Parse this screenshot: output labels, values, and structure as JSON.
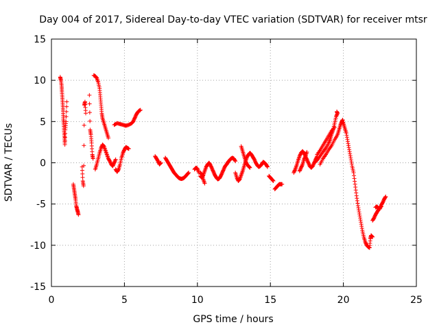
{
  "chart_data": {
    "type": "scatter",
    "title": "Day 004 of 2017, Sidereal Day-to-day VTEC variation (SDTVAR) for receiver mtsr",
    "xlabel": "GPS time / hours",
    "ylabel": "SDTVAR / TECUs",
    "xlim": [
      0,
      25
    ],
    "ylim": [
      -15,
      15
    ],
    "x_ticks": [
      0,
      5,
      10,
      15,
      20,
      25
    ],
    "y_ticks": [
      -15,
      -10,
      -5,
      0,
      5,
      10,
      15
    ],
    "x_tick_labels": [
      "0",
      "5",
      "10",
      "15",
      "20",
      "25"
    ],
    "y_tick_labels": [
      "-15",
      "-10",
      "-5",
      "0",
      "5",
      "10",
      "15"
    ],
    "grid": true,
    "marker": "+",
    "point_color": "#ff0000",
    "series": [
      {
        "name": "SDTVAR",
        "segments": [
          [
            [
              0.6,
              10.4
            ],
            [
              0.65,
              10.0
            ],
            [
              0.7,
              9.3
            ],
            [
              0.72,
              8.6
            ],
            [
              0.75,
              7.8
            ],
            [
              0.78,
              7.0
            ],
            [
              0.8,
              6.2
            ],
            [
              0.82,
              5.3
            ],
            [
              0.85,
              4.6
            ],
            [
              0.87,
              3.8
            ],
            [
              0.9,
              3.0
            ],
            [
              0.92,
              2.2
            ],
            [
              0.95,
              4.0
            ],
            [
              1.0,
              5.0
            ],
            [
              1.05,
              7.4
            ]
          ],
          [
            [
              1.5,
              -2.6
            ],
            [
              1.55,
              -3.2
            ],
            [
              1.6,
              -3.8
            ],
            [
              1.65,
              -4.4
            ],
            [
              1.7,
              -5.2
            ],
            [
              1.75,
              -5.6
            ],
            [
              1.8,
              -5.9
            ],
            [
              1.85,
              -6.3
            ]
          ],
          [
            [
              2.1,
              -0.5
            ],
            [
              2.15,
              -2.2
            ],
            [
              2.2,
              -2.8
            ],
            [
              2.25,
              7.0
            ],
            [
              2.3,
              7.4
            ],
            [
              2.35,
              6.0
            ]
          ],
          [
            [
              2.6,
              8.2
            ],
            [
              2.65,
              4.0
            ],
            [
              2.7,
              3.4
            ],
            [
              2.75,
              2.4
            ],
            [
              2.8,
              1.0
            ],
            [
              2.85,
              0.5
            ]
          ],
          [
            [
              2.9,
              10.6
            ],
            [
              3.0,
              10.5
            ],
            [
              3.1,
              10.3
            ],
            [
              3.2,
              9.8
            ],
            [
              3.3,
              9.0
            ],
            [
              3.35,
              8.0
            ],
            [
              3.4,
              7.0
            ],
            [
              3.45,
              6.0
            ],
            [
              3.5,
              5.4
            ],
            [
              3.6,
              4.8
            ],
            [
              3.7,
              4.2
            ],
            [
              3.8,
              3.6
            ],
            [
              3.9,
              3.0
            ]
          ],
          [
            [
              3.0,
              -0.8
            ],
            [
              3.1,
              -0.2
            ],
            [
              3.2,
              0.5
            ],
            [
              3.3,
              1.2
            ],
            [
              3.4,
              1.8
            ],
            [
              3.5,
              2.2
            ],
            [
              3.6,
              2.0
            ],
            [
              3.7,
              1.5
            ],
            [
              3.8,
              1.0
            ],
            [
              3.9,
              0.5
            ],
            [
              4.0,
              0.2
            ],
            [
              4.1,
              -0.2
            ],
            [
              4.2,
              -0.4
            ],
            [
              4.3,
              0.0
            ],
            [
              4.4,
              0.4
            ]
          ],
          [
            [
              4.4,
              -0.8
            ],
            [
              4.5,
              -1.1
            ],
            [
              4.6,
              -0.8
            ],
            [
              4.7,
              -0.2
            ],
            [
              4.8,
              0.6
            ],
            [
              4.9,
              1.2
            ],
            [
              5.0,
              1.6
            ],
            [
              5.1,
              1.9
            ],
            [
              5.2,
              1.8
            ],
            [
              5.3,
              1.7
            ]
          ],
          [
            [
              4.3,
              4.6
            ],
            [
              4.5,
              4.8
            ],
            [
              4.7,
              4.7
            ],
            [
              4.9,
              4.6
            ],
            [
              5.1,
              4.5
            ],
            [
              5.3,
              4.6
            ],
            [
              5.5,
              4.8
            ],
            [
              5.6,
              5.0
            ],
            [
              5.7,
              5.4
            ],
            [
              5.8,
              5.8
            ],
            [
              5.9,
              6.1
            ],
            [
              6.0,
              6.3
            ],
            [
              6.1,
              6.4
            ]
          ],
          [
            [
              7.1,
              0.8
            ],
            [
              7.2,
              0.5
            ],
            [
              7.3,
              0.2
            ],
            [
              7.4,
              -0.2
            ],
            [
              7.5,
              0.0
            ]
          ],
          [
            [
              7.8,
              0.6
            ],
            [
              7.9,
              0.3
            ],
            [
              8.0,
              0.0
            ],
            [
              8.1,
              -0.3
            ],
            [
              8.2,
              -0.6
            ],
            [
              8.3,
              -0.9
            ],
            [
              8.4,
              -1.2
            ],
            [
              8.5,
              -1.4
            ],
            [
              8.6,
              -1.6
            ],
            [
              8.7,
              -1.8
            ],
            [
              8.8,
              -1.9
            ],
            [
              8.9,
              -1.95
            ],
            [
              9.0,
              -1.9
            ],
            [
              9.1,
              -1.8
            ],
            [
              9.2,
              -1.6
            ],
            [
              9.3,
              -1.4
            ],
            [
              9.4,
              -1.2
            ]
          ],
          [
            [
              9.8,
              -0.8
            ],
            [
              9.9,
              -0.6
            ],
            [
              10.0,
              -0.7
            ],
            [
              10.1,
              -1.2
            ]
          ],
          [
            [
              10.2,
              -1.6
            ],
            [
              10.3,
              -1.8
            ],
            [
              10.4,
              -1.5
            ],
            [
              10.5,
              -1.0
            ],
            [
              10.6,
              -0.5
            ],
            [
              10.7,
              -0.2
            ],
            [
              10.8,
              0.0
            ],
            [
              10.9,
              -0.3
            ],
            [
              11.0,
              -0.7
            ],
            [
              11.1,
              -1.1
            ],
            [
              11.2,
              -1.5
            ],
            [
              11.3,
              -1.8
            ],
            [
              11.4,
              -2.0
            ],
            [
              11.5,
              -1.9
            ],
            [
              11.6,
              -1.6
            ],
            [
              11.7,
              -1.2
            ],
            [
              11.8,
              -0.8
            ],
            [
              11.9,
              -0.4
            ],
            [
              12.0,
              -0.2
            ],
            [
              12.1,
              0.1
            ],
            [
              12.2,
              0.3
            ],
            [
              12.3,
              0.5
            ],
            [
              12.4,
              0.6
            ],
            [
              12.5,
              0.5
            ],
            [
              12.6,
              0.2
            ]
          ],
          [
            [
              10.2,
              -1.2
            ],
            [
              10.3,
              -1.4
            ],
            [
              10.4,
              -2.0
            ],
            [
              10.5,
              -2.5
            ]
          ],
          [
            [
              12.6,
              -1.2
            ],
            [
              12.7,
              -1.8
            ],
            [
              12.8,
              -2.2
            ],
            [
              12.9,
              -2.0
            ],
            [
              13.0,
              -1.5
            ],
            [
              13.1,
              -1.0
            ],
            [
              13.2,
              -0.4
            ],
            [
              13.3,
              0.2
            ],
            [
              13.4,
              0.7
            ],
            [
              13.5,
              1.0
            ],
            [
              13.6,
              1.2
            ],
            [
              13.7,
              1.0
            ],
            [
              13.8,
              0.7
            ],
            [
              13.9,
              0.4
            ],
            [
              14.0,
              0.0
            ],
            [
              14.1,
              -0.3
            ],
            [
              14.2,
              -0.5
            ],
            [
              14.3,
              -0.4
            ],
            [
              14.4,
              -0.2
            ],
            [
              14.5,
              0.1
            ],
            [
              14.6,
              0.0
            ],
            [
              14.7,
              -0.2
            ],
            [
              14.8,
              -0.5
            ]
          ],
          [
            [
              13.0,
              2.0
            ],
            [
              13.1,
              1.4
            ],
            [
              13.2,
              0.8
            ],
            [
              13.3,
              0.2
            ],
            [
              13.4,
              -0.2
            ],
            [
              13.5,
              -0.4
            ],
            [
              13.6,
              -0.6
            ]
          ],
          [
            [
              14.9,
              -1.6
            ],
            [
              15.0,
              -1.8
            ],
            [
              15.1,
              -2.0
            ],
            [
              15.2,
              -2.2
            ]
          ],
          [
            [
              15.3,
              -3.2
            ],
            [
              15.4,
              -3.0
            ],
            [
              15.5,
              -2.8
            ],
            [
              15.6,
              -2.6
            ],
            [
              15.7,
              -2.6
            ],
            [
              15.8,
              -2.6
            ]
          ],
          [
            [
              16.6,
              -1.2
            ],
            [
              16.7,
              -0.8
            ],
            [
              16.8,
              -0.3
            ],
            [
              16.9,
              0.3
            ],
            [
              17.0,
              0.8
            ],
            [
              17.1,
              1.2
            ],
            [
              17.2,
              1.4
            ],
            [
              17.3,
              1.2
            ],
            [
              17.4,
              0.8
            ],
            [
              17.5,
              0.4
            ],
            [
              17.6,
              0.0
            ],
            [
              17.7,
              -0.4
            ],
            [
              17.8,
              -0.6
            ],
            [
              17.9,
              -0.4
            ],
            [
              18.0,
              0.0
            ],
            [
              18.1,
              0.4
            ],
            [
              18.2,
              0.8
            ]
          ],
          [
            [
              17.0,
              -1.0
            ],
            [
              17.1,
              -0.6
            ],
            [
              17.2,
              -0.2
            ],
            [
              17.3,
              0.4
            ],
            [
              17.4,
              0.8
            ],
            [
              17.5,
              1.3
            ]
          ],
          [
            [
              18.0,
              0.0
            ],
            [
              18.2,
              0.3
            ],
            [
              18.4,
              0.8
            ],
            [
              18.6,
              1.3
            ],
            [
              18.8,
              1.8
            ],
            [
              19.0,
              2.4
            ],
            [
              19.1,
              2.9
            ],
            [
              19.2,
              3.5
            ],
            [
              19.3,
              4.0
            ],
            [
              19.4,
              4.8
            ],
            [
              19.5,
              5.6
            ],
            [
              19.6,
              6.0
            ],
            [
              19.55,
              6.2
            ]
          ],
          [
            [
              18.4,
              -0.2
            ],
            [
              18.6,
              0.5
            ],
            [
              18.8,
              1.0
            ],
            [
              19.0,
              1.6
            ],
            [
              19.2,
              2.1
            ],
            [
              19.4,
              2.8
            ],
            [
              19.6,
              3.4
            ],
            [
              19.7,
              4.0
            ],
            [
              19.8,
              4.6
            ],
            [
              19.9,
              5.0
            ],
            [
              19.95,
              5.2
            ]
          ],
          [
            [
              18.2,
              1.0
            ],
            [
              18.4,
              1.5
            ],
            [
              18.6,
              2.1
            ],
            [
              18.8,
              2.7
            ],
            [
              19.0,
              3.3
            ],
            [
              19.2,
              3.9
            ],
            [
              19.4,
              4.3
            ]
          ],
          [
            [
              19.9,
              5.0
            ],
            [
              20.0,
              4.8
            ],
            [
              20.1,
              4.2
            ],
            [
              20.2,
              3.6
            ],
            [
              20.3,
              2.6
            ],
            [
              20.4,
              1.6
            ],
            [
              20.5,
              0.6
            ],
            [
              20.6,
              -0.4
            ],
            [
              20.7,
              -1.2
            ],
            [
              20.8,
              -2.6
            ],
            [
              20.9,
              -4.0
            ],
            [
              21.0,
              -5.2
            ],
            [
              21.1,
              -6.2
            ],
            [
              21.2,
              -7.2
            ],
            [
              21.3,
              -8.2
            ],
            [
              21.4,
              -9.0
            ],
            [
              21.5,
              -9.6
            ],
            [
              21.6,
              -10.0
            ],
            [
              21.7,
              -10.2
            ],
            [
              21.8,
              -10.3
            ],
            [
              21.85,
              -9.2
            ],
            [
              21.9,
              -8.8
            ],
            [
              22.0,
              -9.0
            ]
          ],
          [
            [
              22.0,
              -7.0
            ],
            [
              22.1,
              -6.7
            ],
            [
              22.2,
              -6.3
            ],
            [
              22.3,
              -6.0
            ],
            [
              22.4,
              -5.7
            ],
            [
              22.5,
              -5.4
            ],
            [
              22.6,
              -5.3
            ]
          ],
          [
            [
              22.2,
              -5.4
            ],
            [
              22.3,
              -5.3
            ],
            [
              22.4,
              -5.5
            ],
            [
              22.5,
              -5.6
            ],
            [
              22.6,
              -5.1
            ],
            [
              22.7,
              -4.8
            ],
            [
              22.8,
              -4.4
            ],
            [
              22.9,
              -4.1
            ]
          ]
        ]
      }
    ]
  }
}
